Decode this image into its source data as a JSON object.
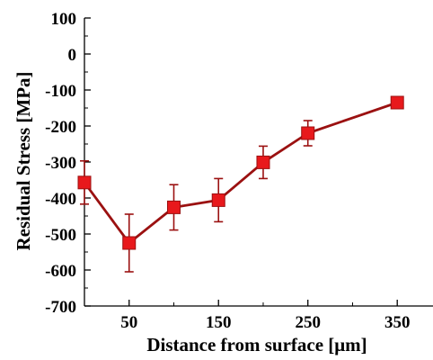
{
  "chart_data": {
    "type": "line",
    "title": "",
    "xlabel": "Distance from surface [μm]",
    "ylabel": "Residual Stress [MPa]",
    "xlim": [
      0,
      390
    ],
    "ylim": [
      -700,
      100
    ],
    "x_ticks": [
      50,
      150,
      250,
      350
    ],
    "x_tick_labels": [
      "50",
      "150",
      "250",
      "350"
    ],
    "y_ticks": [
      100,
      0,
      -100,
      -200,
      -300,
      -400,
      -500,
      -600,
      -700
    ],
    "y_tick_labels": [
      "100",
      "0",
      "-100",
      "-200",
      "-300",
      "-400",
      "-500",
      "-600",
      "-700"
    ],
    "grid": false,
    "series": [
      {
        "x": [
          0,
          50,
          100,
          150,
          200,
          250,
          350
        ],
        "y": [
          -357,
          -525,
          -426,
          -406,
          -301,
          -220,
          -135
        ],
        "error": [
          60,
          80,
          63,
          60,
          45,
          35,
          15
        ],
        "color": "#9b1111",
        "marker_color": "#e8191c",
        "marker": "square"
      }
    ]
  }
}
